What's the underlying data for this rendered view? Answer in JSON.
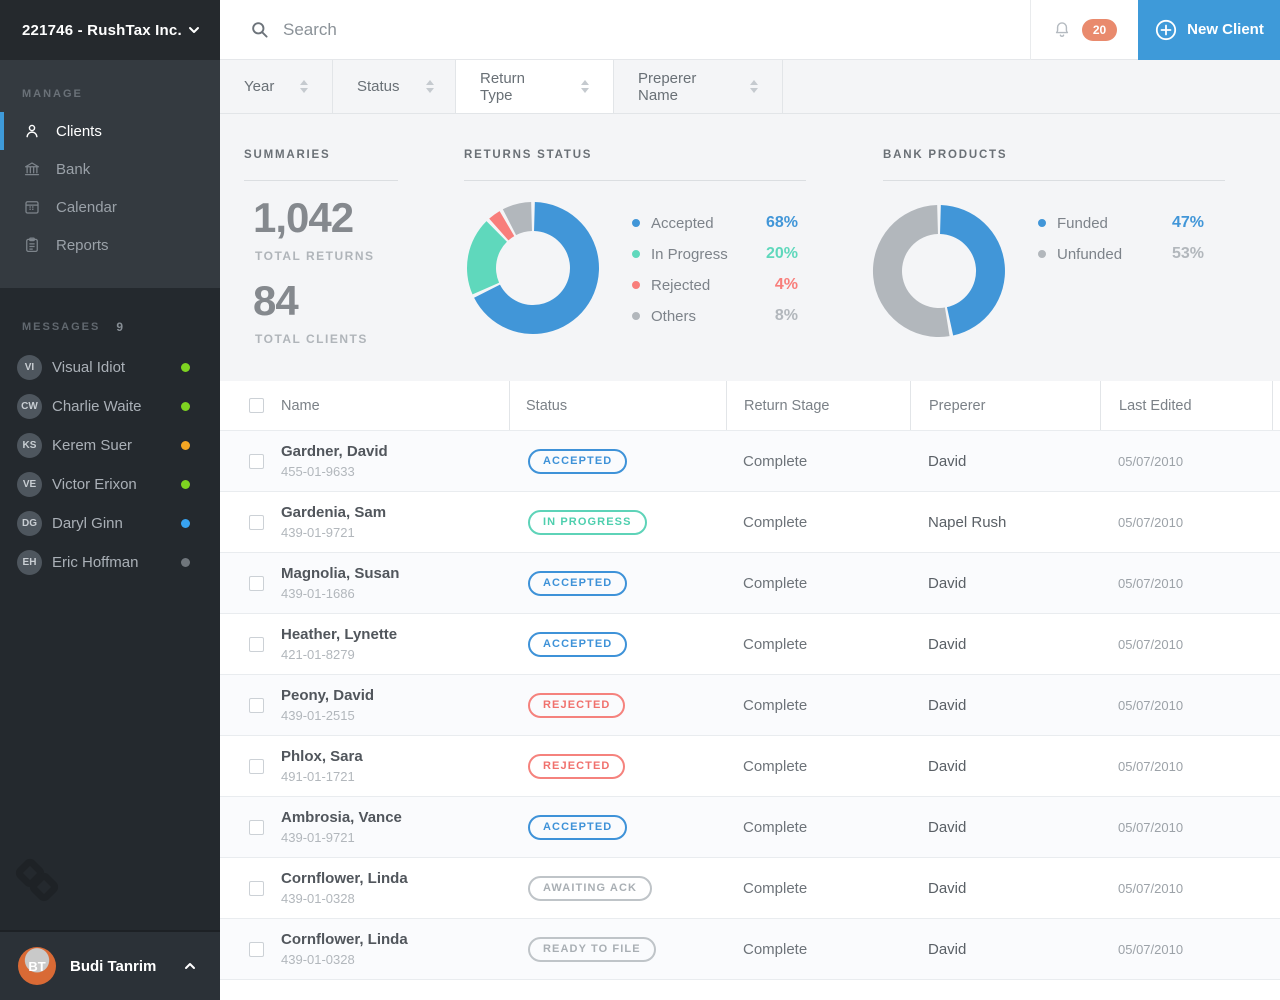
{
  "sidebar": {
    "account_label": "221746 - RushTax Inc.",
    "manage": {
      "label": "MANAGE",
      "items": [
        {
          "label": "Clients",
          "icon": "user",
          "active": true
        },
        {
          "label": "Bank",
          "icon": "bank",
          "active": false
        },
        {
          "label": "Calendar",
          "icon": "calendar",
          "active": false
        },
        {
          "label": "Reports",
          "icon": "reports",
          "active": false
        }
      ]
    },
    "messages": {
      "label": "MESSAGES",
      "count": "9",
      "items": [
        {
          "name": "Visual Idiot",
          "presence_color": "#7ed321"
        },
        {
          "name": "Charlie Waite",
          "presence_color": "#7ed321"
        },
        {
          "name": "Kerem Suer",
          "presence_color": "#f5a623"
        },
        {
          "name": "Victor Erixon",
          "presence_color": "#7ed321"
        },
        {
          "name": "Daryl Ginn",
          "presence_color": "#38a3f1"
        },
        {
          "name": "Eric Hoffman",
          "presence_color": "#70767c"
        }
      ]
    },
    "user": {
      "name": "Budi Tanrim"
    }
  },
  "header": {
    "search_placeholder": "Search",
    "notification_count": "20",
    "new_client_label": "New Client"
  },
  "filters": [
    {
      "label": "Year",
      "active": false
    },
    {
      "label": "Status",
      "active": false
    },
    {
      "label": "Return Type",
      "active": true
    },
    {
      "label": "Preperer Name",
      "active": false
    }
  ],
  "summaries": {
    "title": "SUMMARIES",
    "stats": [
      {
        "value": "1,042",
        "label": "TOTAL RETURNS"
      },
      {
        "value": "84",
        "label": "TOTAL CLIENTS"
      }
    ]
  },
  "chart_data": [
    {
      "type": "pie",
      "donut": true,
      "title": "RETURNS STATUS",
      "legend_position": "right",
      "series": [
        {
          "label": "Accepted",
          "value": 68,
          "color": "#4196d8"
        },
        {
          "label": "In Progress",
          "value": 20,
          "color": "#5fd8bc"
        },
        {
          "label": "Rejected",
          "value": 4,
          "color": "#f87e7b"
        },
        {
          "label": "Others",
          "value": 8,
          "color": "#b2b7bc"
        }
      ]
    },
    {
      "type": "pie",
      "donut": true,
      "title": "BANK PRODUCTS",
      "legend_position": "right",
      "series": [
        {
          "label": "Funded",
          "value": 47,
          "color": "#4196d8"
        },
        {
          "label": "Unfunded",
          "value": 53,
          "color": "#b2b7bc"
        }
      ]
    }
  ],
  "table": {
    "columns": [
      "Name",
      "Status",
      "Return Stage",
      "Preperer",
      "Last Edited"
    ],
    "rows": [
      {
        "name": "Gardner, David",
        "ssn": "455-01-9633",
        "status": "ACCEPTED",
        "variant": "accepted",
        "stage": "Complete",
        "preperer": "David",
        "last_edited": "05/07/2010"
      },
      {
        "name": "Gardenia, Sam",
        "ssn": "439-01-9721",
        "status": "IN PROGRESS",
        "variant": "progress",
        "stage": "Complete",
        "preperer": "Napel Rush",
        "last_edited": "05/07/2010"
      },
      {
        "name": "Magnolia, Susan",
        "ssn": "439-01-1686",
        "status": "ACCEPTED",
        "variant": "accepted",
        "stage": "Complete",
        "preperer": "David",
        "last_edited": "05/07/2010"
      },
      {
        "name": "Heather, Lynette",
        "ssn": "421-01-8279",
        "status": "ACCEPTED",
        "variant": "accepted",
        "stage": "Complete",
        "preperer": "David",
        "last_edited": "05/07/2010"
      },
      {
        "name": "Peony, David",
        "ssn": "439-01-2515",
        "status": "REJECTED",
        "variant": "rejected",
        "stage": "Complete",
        "preperer": "David",
        "last_edited": "05/07/2010"
      },
      {
        "name": "Phlox, Sara",
        "ssn": "491-01-1721",
        "status": "REJECTED",
        "variant": "rejected",
        "stage": "Complete",
        "preperer": "David",
        "last_edited": "05/07/2010"
      },
      {
        "name": "Ambrosia, Vance",
        "ssn": "439-01-9721",
        "status": "ACCEPTED",
        "variant": "accepted",
        "stage": "Complete",
        "preperer": "David",
        "last_edited": "05/07/2010"
      },
      {
        "name": "Cornflower, Linda",
        "ssn": "439-01-0328",
        "status": "AWAITING ACK",
        "variant": "neutral",
        "stage": "Complete",
        "preperer": "David",
        "last_edited": "05/07/2010"
      },
      {
        "name": "Cornflower, Linda",
        "ssn": "439-01-0328",
        "status": "READY TO FILE",
        "variant": "neutral",
        "stage": "Complete",
        "preperer": "David",
        "last_edited": "05/07/2010"
      }
    ]
  }
}
